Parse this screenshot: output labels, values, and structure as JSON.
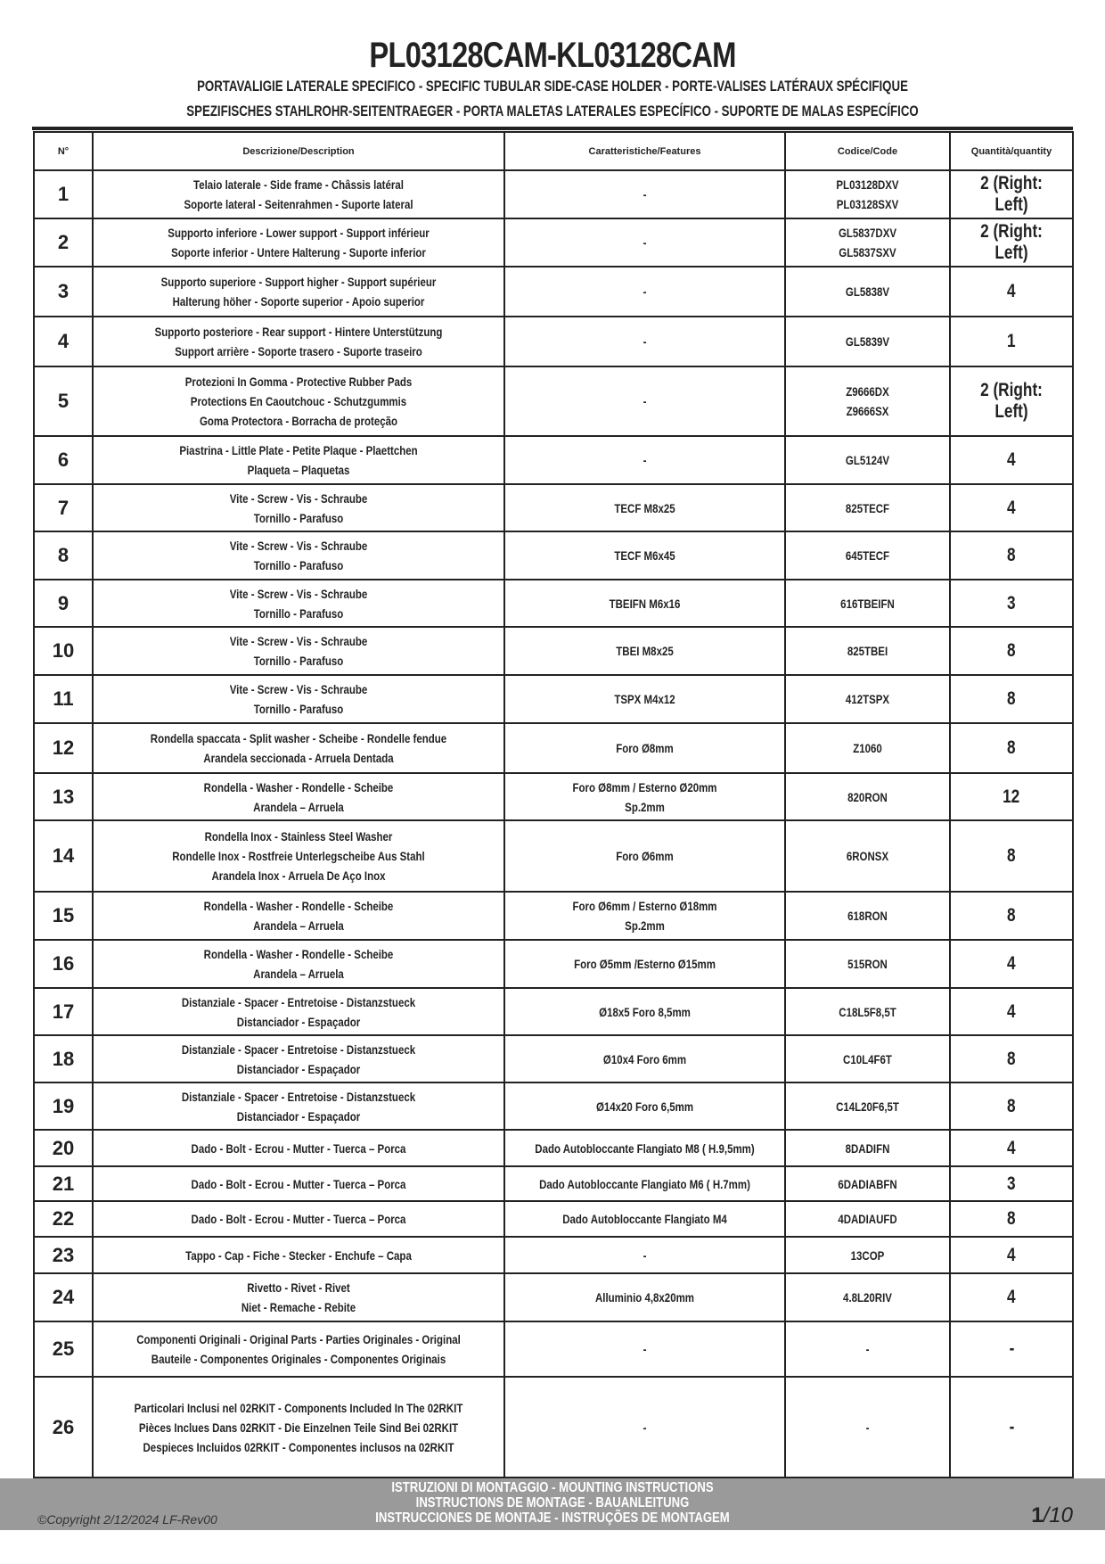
{
  "header": {
    "title": "PL03128CAM-KL03128CAM",
    "subtitle_1": "PORTAVALIGIE LATERALE SPECIFICO  -  SPECIFIC TUBULAR SIDE-CASE HOLDER  - PORTE-VALISES LATÉRAUX SPÉCIFIQUE",
    "subtitle_2": "SPEZIFISCHES STAHLROHR-SEITENTRAEGER - PORTA MALETAS LATERALES ESPECÍFICO - SUPORTE DE MALAS ESPECÍFICO"
  },
  "table": {
    "columns": [
      "N°",
      "Descrizione/Description",
      "Caratteristiche/Features",
      "Codice/Code",
      "Quantità/quantity"
    ],
    "rows": [
      {
        "n": "1",
        "desc": [
          "Telaio laterale - Side frame - Châssis latéral",
          "Soporte lateral - Seitenrahmen - Suporte lateral"
        ],
        "feat": [
          "-"
        ],
        "code": [
          "PL03128DXV",
          "PL03128SXV"
        ],
        "qty": "2 (Right: Left)"
      },
      {
        "n": "2",
        "desc": [
          "Supporto inferiore - Lower support - Support inférieur",
          "Soporte inferior - Untere Halterung - Suporte inferior"
        ],
        "feat": [
          "-"
        ],
        "code": [
          "GL5837DXV",
          "GL5837SXV"
        ],
        "qty": "2 (Right: Left)"
      },
      {
        "n": "3",
        "desc": [
          "Supporto superiore - Support higher - Support supérieur",
          "Halterung höher - Soporte superior - Apoio superior"
        ],
        "feat": [
          "-"
        ],
        "code": [
          "GL5838V"
        ],
        "qty": "4"
      },
      {
        "n": "4",
        "desc": [
          "Supporto posteriore - Rear support - Hintere Unterstützung",
          "Support arrière - Soporte trasero - Suporte traseiro"
        ],
        "feat": [
          "-"
        ],
        "code": [
          "GL5839V"
        ],
        "qty": "1"
      },
      {
        "n": "5",
        "desc": [
          "Protezioni In Gomma - Protective Rubber Pads",
          "Protections En Caoutchouc - Schutzgummis",
          "Goma Protectora - Borracha de proteção"
        ],
        "feat": [
          "-"
        ],
        "code": [
          "Z9666DX",
          "Z9666SX"
        ],
        "qty": "2 (Right: Left)"
      },
      {
        "n": "6",
        "desc": [
          "Piastrina - Little Plate - Petite Plaque - Plaettchen",
          "Plaqueta – Plaquetas"
        ],
        "feat": [
          "-"
        ],
        "code": [
          "GL5124V"
        ],
        "qty": "4"
      },
      {
        "n": "7",
        "desc": [
          "Vite - Screw - Vis - Schraube",
          "Tornillo - Parafuso"
        ],
        "feat": [
          "TECF M8x25"
        ],
        "code": [
          "825TECF"
        ],
        "qty": "4"
      },
      {
        "n": "8",
        "desc": [
          "Vite - Screw - Vis - Schraube",
          "Tornillo - Parafuso"
        ],
        "feat": [
          "TECF M6x45"
        ],
        "code": [
          "645TECF"
        ],
        "qty": "8"
      },
      {
        "n": "9",
        "desc": [
          "Vite - Screw - Vis - Schraube",
          "Tornillo - Parafuso"
        ],
        "feat": [
          "TBEIFN M6x16"
        ],
        "code": [
          "616TBEIFN"
        ],
        "qty": "3"
      },
      {
        "n": "10",
        "desc": [
          "Vite - Screw - Vis - Schraube",
          "Tornillo - Parafuso"
        ],
        "feat": [
          "TBEI M8x25"
        ],
        "code": [
          "825TBEI"
        ],
        "qty": "8"
      },
      {
        "n": "11",
        "desc": [
          "Vite - Screw - Vis - Schraube",
          "Tornillo - Parafuso"
        ],
        "feat": [
          "TSPX M4x12"
        ],
        "code": [
          "412TSPX"
        ],
        "qty": "8"
      },
      {
        "n": "12",
        "desc": [
          "Rondella spaccata - Split washer - Scheibe - Rondelle fendue",
          "Arandela seccionada - Arruela Dentada"
        ],
        "feat": [
          "Foro Ø8mm"
        ],
        "code": [
          "Z1060"
        ],
        "qty": "8"
      },
      {
        "n": "13",
        "desc": [
          "Rondella - Washer - Rondelle - Scheibe",
          "Arandela – Arruela"
        ],
        "feat": [
          "Foro Ø8mm / Esterno Ø20mm",
          "Sp.2mm"
        ],
        "code": [
          "820RON"
        ],
        "qty": "12"
      },
      {
        "n": "14",
        "desc": [
          "Rondella Inox - Stainless Steel Washer",
          "Rondelle Inox - Rostfreie Unterlegscheibe Aus Stahl",
          "Arandela Inox - Arruela De Aço Inox"
        ],
        "feat": [
          "Foro Ø6mm"
        ],
        "code": [
          "6RONSX"
        ],
        "qty": "8"
      },
      {
        "n": "15",
        "desc": [
          "Rondella - Washer - Rondelle - Scheibe",
          "Arandela – Arruela"
        ],
        "feat": [
          "Foro Ø6mm / Esterno Ø18mm",
          "Sp.2mm"
        ],
        "code": [
          "618RON"
        ],
        "qty": "8"
      },
      {
        "n": "16",
        "desc": [
          "Rondella - Washer - Rondelle - Scheibe",
          "Arandela – Arruela"
        ],
        "feat": [
          "Foro Ø5mm /Esterno Ø15mm"
        ],
        "code": [
          "515RON"
        ],
        "qty": "4"
      },
      {
        "n": "17",
        "desc": [
          "Distanziale - Spacer - Entretoise - Distanzstueck",
          "Distanciador - Espaçador"
        ],
        "feat": [
          "Ø18x5 Foro 8,5mm"
        ],
        "code": [
          "C18L5F8,5T"
        ],
        "qty": "4"
      },
      {
        "n": "18",
        "desc": [
          "Distanziale - Spacer - Entretoise - Distanzstueck",
          "Distanciador - Espaçador"
        ],
        "feat": [
          "Ø10x4 Foro 6mm"
        ],
        "code": [
          "C10L4F6T"
        ],
        "qty": "8"
      },
      {
        "n": "19",
        "desc": [
          "Distanziale - Spacer - Entretoise - Distanzstueck",
          "Distanciador - Espaçador"
        ],
        "feat": [
          "Ø14x20 Foro 6,5mm"
        ],
        "code": [
          "C14L20F6,5T"
        ],
        "qty": "8"
      },
      {
        "n": "20",
        "desc": [
          "Dado - Bolt - Ecrou - Mutter - Tuerca – Porca"
        ],
        "feat": [
          "Dado Autobloccante  Flangiato M8 ( H.9,5mm)"
        ],
        "code": [
          "8DADIFN"
        ],
        "qty": "4"
      },
      {
        "n": "21",
        "desc": [
          "Dado - Bolt - Ecrou - Mutter - Tuerca – Porca"
        ],
        "feat": [
          "Dado Autobloccante  Flangiato M6 ( H.7mm)"
        ],
        "code": [
          "6DADIABFN"
        ],
        "qty": "3"
      },
      {
        "n": "22",
        "desc": [
          "Dado - Bolt - Ecrou - Mutter - Tuerca – Porca"
        ],
        "feat": [
          "Dado Autobloccante  Flangiato M4"
        ],
        "code": [
          "4DADIAUFD"
        ],
        "qty": "8"
      },
      {
        "n": "23",
        "desc": [
          "Tappo - Cap - Fiche - Stecker - Enchufe – Capa"
        ],
        "feat": [
          "-"
        ],
        "code": [
          "13COP"
        ],
        "qty": "4"
      },
      {
        "n": "24",
        "desc": [
          "Rivetto - Rivet - Rivet",
          "Niet - Remache - Rebite"
        ],
        "feat": [
          "Alluminio 4,8x20mm"
        ],
        "code": [
          "4.8L20RIV"
        ],
        "qty": "4"
      },
      {
        "n": "25",
        "desc": [
          "Componenti Originali - Original Parts - Parties Originales - Original",
          "Bauteile - Componentes Originales - Componentes Originais"
        ],
        "feat": [
          "-"
        ],
        "code": [
          "-"
        ],
        "qty": "-"
      },
      {
        "n": "26",
        "desc": [
          "Particolari Inclusi nel 02RKIT - Components Included In The 02RKIT",
          "Pièces Inclues Dans 02RKIT - Die Einzelnen Teile Sind Bei 02RKIT",
          "Despieces Incluidos 02RKIT - Componentes inclusos na 02RKIT"
        ],
        "feat": [
          "-"
        ],
        "code": [
          "-"
        ],
        "qty": "-"
      }
    ]
  },
  "footer": {
    "instructions": [
      "ISTRUZIONI DI MONTAGGIO  -  MOUNTING INSTRUCTIONS",
      "INSTRUCTIONS DE MONTAGE - BAUANLEITUNG",
      "INSTRUCCIONES DE MONTAJE - INSTRUÇÕES DE MONTAGEM"
    ],
    "copyright": "©Copyright 2/12/2024 LF-Rev00",
    "page_current": "1",
    "page_total": "/10",
    "band_color": "#9a9a9a"
  }
}
